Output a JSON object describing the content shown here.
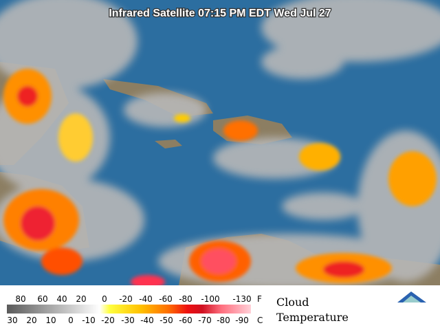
{
  "header": {
    "title": "Infrared Satellite 07:15 PM EDT Wed Jul 27"
  },
  "legend": {
    "fahrenheit": {
      "labels": [
        "80",
        "60",
        "40",
        "20",
        "0",
        "-20",
        "-40",
        "-60",
        "-80",
        "-100",
        "-130"
      ],
      "unit": "F"
    },
    "celsius": {
      "labels": [
        "30",
        "20",
        "10",
        "0",
        "-10",
        "-20",
        "-30",
        "-40",
        "-50",
        "-60",
        "-70",
        "-80",
        "-90"
      ],
      "unit": "C"
    },
    "caption": [
      "Cloud",
      "Temperature"
    ]
  }
}
